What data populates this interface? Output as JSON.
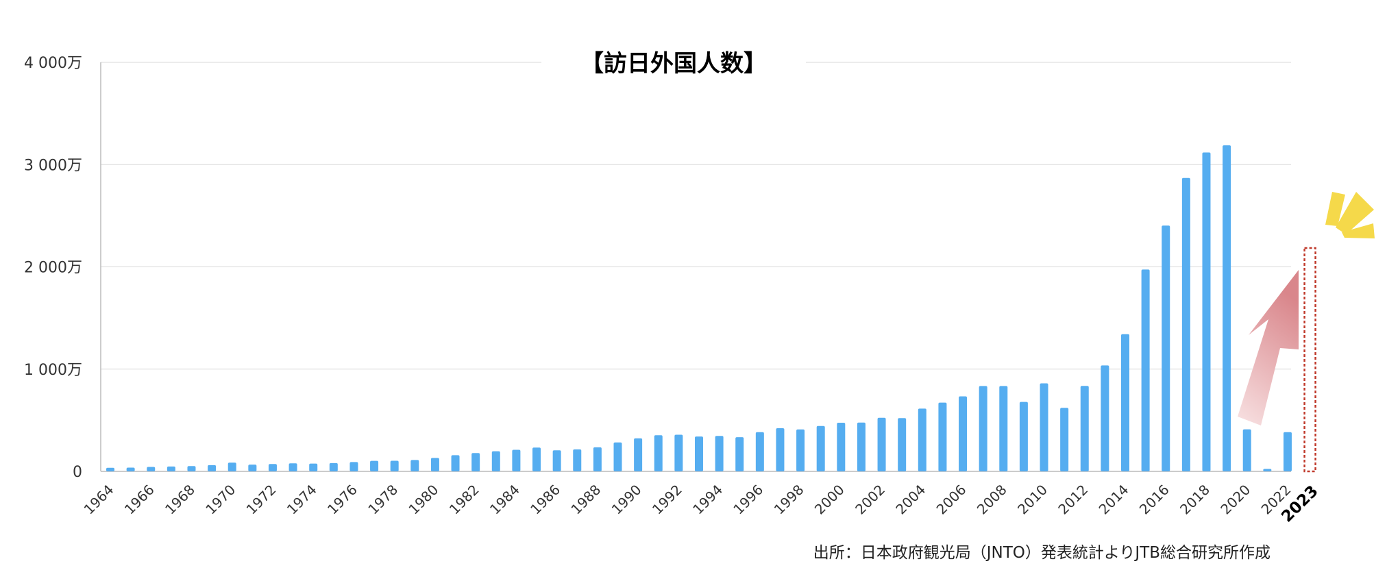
{
  "chart_data": {
    "type": "bar",
    "title": "【訪日外国人数】",
    "source": "出所：日本政府観光局（JNTO）発表統計よりJTB総合研究所作成",
    "ylim": [
      0,
      40000000
    ],
    "yticks": [
      {
        "value": 0,
        "label": "0"
      },
      {
        "value": 10000000,
        "label": "1 000万"
      },
      {
        "value": 20000000,
        "label": "2 000万"
      },
      {
        "value": 30000000,
        "label": "3 000万"
      },
      {
        "value": 40000000,
        "label": "4 000万"
      }
    ],
    "grid": true,
    "categories": [
      1964,
      1965,
      1966,
      1967,
      1968,
      1969,
      1970,
      1971,
      1972,
      1973,
      1974,
      1975,
      1976,
      1977,
      1978,
      1979,
      1980,
      1981,
      1982,
      1983,
      1984,
      1985,
      1986,
      1987,
      1988,
      1989,
      1990,
      1991,
      1992,
      1993,
      1994,
      1995,
      1996,
      1997,
      1998,
      1999,
      2000,
      2001,
      2002,
      2003,
      2004,
      2005,
      2006,
      2007,
      2008,
      2009,
      2010,
      2011,
      2012,
      2013,
      2014,
      2015,
      2016,
      2017,
      2018,
      2019,
      2020,
      2021,
      2022,
      2023
    ],
    "x_tick_labels": [
      "1964",
      "1966",
      "1968",
      "1970",
      "1972",
      "1974",
      "1976",
      "1978",
      "1980",
      "1982",
      "1984",
      "1986",
      "1988",
      "1990",
      "1992",
      "1994",
      "1996",
      "1998",
      "2000",
      "2002",
      "2004",
      "2006",
      "2008",
      "2010",
      "2012",
      "2014",
      "2016",
      "2018",
      "2020",
      "2022",
      "2023"
    ],
    "highlight_label": "2023",
    "values": [
      352832,
      366649,
      432937,
      476771,
      519004,
      608830,
      854419,
      660715,
      723744,
      784691,
      764246,
      811672,
      914772,
      1028140,
      1038876,
      1112606,
      1316632,
      1583043,
      1793164,
      1968461,
      2110346,
      2327047,
      2061526,
      2155320,
      2355412,
      2835064,
      3235860,
      3532651,
      3581540,
      3410447,
      3468055,
      3345274,
      3837113,
      4218208,
      4106057,
      4437863,
      4757146,
      4771555,
      5238771,
      5211725,
      6137905,
      6727926,
      7334077,
      8346969,
      8350835,
      6789658,
      8611175,
      6218752,
      8358105,
      10363904,
      13413467,
      19737409,
      24039700,
      28691073,
      31191856,
      31882049,
      4115828,
      245862,
      3832110,
      null
    ],
    "bar_color": "#55adf0",
    "placeholder_color": "#c0392b",
    "arrow_color": "#e3a3a6",
    "sparkle_color": "#f5d94a"
  }
}
